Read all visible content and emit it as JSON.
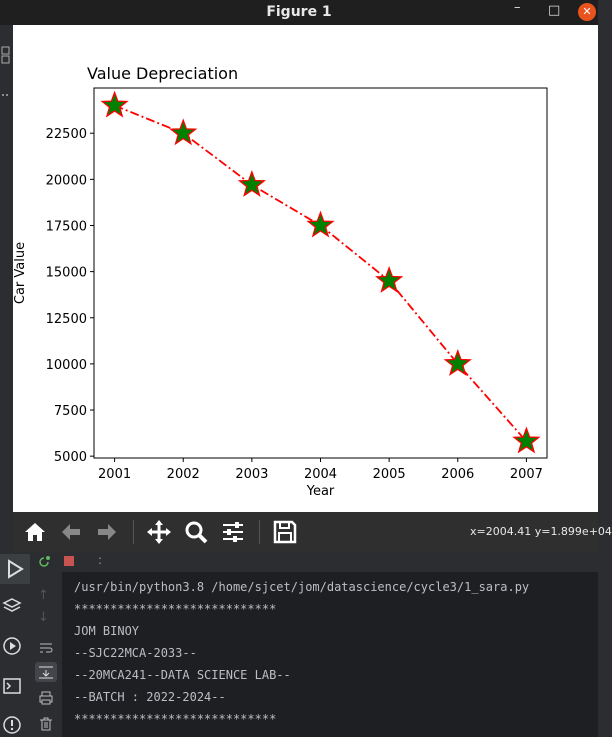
{
  "window": {
    "title": "Figure 1",
    "minimize": "–",
    "maximize": "□",
    "close": "✕"
  },
  "chart_data": {
    "type": "line",
    "title": "Value Depreciation",
    "xlabel": "Year",
    "ylabel": "Car Value",
    "x": [
      2001,
      2002,
      2003,
      2004,
      2005,
      2006,
      2007
    ],
    "y": [
      24000,
      22500,
      19700,
      17500,
      14500,
      10000,
      5800
    ],
    "xlim": [
      2000.7,
      2007.3
    ],
    "ylim": [
      4900,
      24950
    ],
    "xticks": [
      "2001",
      "2002",
      "2003",
      "2004",
      "2005",
      "2006",
      "2007"
    ],
    "yticks": [
      5000,
      7500,
      10000,
      12500,
      15000,
      17500,
      20000,
      22500
    ],
    "ytick_labels": [
      "5000",
      "7500",
      "10000",
      "12500",
      "15000",
      "17500",
      "20000",
      "22500"
    ],
    "line_color": "#ff0000",
    "line_style": "dash-dot",
    "marker": "star",
    "marker_face": "#008000",
    "marker_edge": "#ff0000",
    "grid": false
  },
  "toolbar": {
    "coords": "x=2004.41 y=1.899e+04",
    "icons": [
      "home-icon",
      "back-arrow-icon",
      "forward-arrow-icon",
      "pan-icon",
      "zoom-icon",
      "configure-icon",
      "save-icon"
    ]
  },
  "console": {
    "lines": [
      "/usr/bin/python3.8 /home/sjcet/jom/datascience/cycle3/1_sara.py",
      "****************************",
      "JOM BINOY",
      "--SJC22MCA-2033--",
      "--20MCA241--DATA SCIENCE LAB--",
      "--BATCH : 2022-2024--",
      "****************************"
    ],
    "header_menu": ":"
  }
}
